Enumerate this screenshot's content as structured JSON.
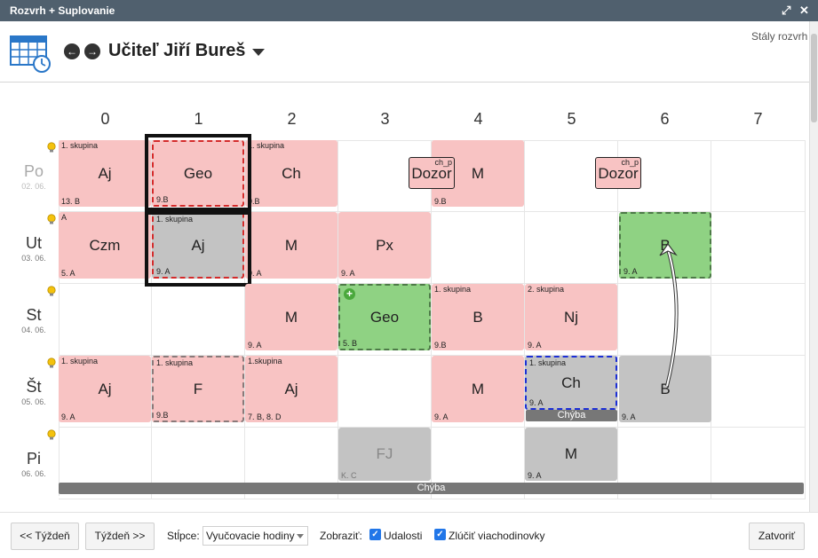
{
  "window": {
    "title": "Rozvrh + Suplovanie"
  },
  "header": {
    "title": "Učiteľ Jiří Bureš",
    "stale_link": "Stály rozvrh"
  },
  "columns": [
    "0",
    "1",
    "2",
    "3",
    "4",
    "5",
    "6",
    "7"
  ],
  "days": [
    {
      "name": "Po",
      "date": "02. 06."
    },
    {
      "name": "Ut",
      "date": "03. 06."
    },
    {
      "name": "St",
      "date": "04. 06."
    },
    {
      "name": "Št",
      "date": "05. 06."
    },
    {
      "name": "Pi",
      "date": "06. 06."
    }
  ],
  "lessons": {
    "po0": {
      "subj": "Aj",
      "grp": "1. skupina",
      "cls": "13. B"
    },
    "po1": {
      "subj": "Geo",
      "grp": "",
      "cls": "9.B"
    },
    "po2": {
      "subj": "Ch",
      "grp": "1. skupina",
      "cls": "9.B"
    },
    "po4": {
      "subj": "M",
      "grp": "",
      "cls": "9.B"
    },
    "ut0": {
      "subj": "Czm",
      "grp": "A",
      "cls": "5. A"
    },
    "ut1": {
      "subj": "Aj",
      "grp": "1. skupina",
      "cls": "9. A"
    },
    "ut2": {
      "subj": "M",
      "grp": "",
      "cls": "9. A"
    },
    "ut3": {
      "subj": "Px",
      "grp": "",
      "cls": "9. A"
    },
    "ut6": {
      "subj": "B",
      "grp": "",
      "cls": "9. A"
    },
    "st2": {
      "subj": "M",
      "grp": "",
      "cls": "9. A"
    },
    "st3": {
      "subj": "Geo",
      "grp": "",
      "cls": "5. B"
    },
    "st4": {
      "subj": "B",
      "grp": "1. skupina",
      "cls": "9.B"
    },
    "st5": {
      "subj": "Nj",
      "grp": "2. skupina",
      "cls": "9. A"
    },
    "st0": {
      "subj": "Aj",
      "grp": "1. skupina",
      "cls": "9. A"
    },
    "st1": {
      "subj": "F",
      "grp": "1. skupina",
      "cls": "9.B"
    },
    "st2b": {
      "subj": "Aj",
      "grp": "1.skupina",
      "cls": "7. B, 8. D"
    },
    "st4b": {
      "subj": "M",
      "grp": "",
      "cls": "9. A"
    },
    "st5b": {
      "subj": "Ch",
      "grp": "1. skupina",
      "cls": "9. A"
    },
    "st6b": {
      "subj": "B",
      "grp": "",
      "cls": "9. A"
    },
    "pi3": {
      "subj": "FJ",
      "grp": "",
      "cls": "K. C"
    },
    "pi5": {
      "subj": "M",
      "grp": "",
      "cls": "9. A"
    }
  },
  "dozor": {
    "label": "Dozor",
    "tag": "ch_p"
  },
  "absence": {
    "label": "Chýba"
  },
  "footer": {
    "prev_week": "<< Týždeň",
    "next_week": "Týždeň >>",
    "columns_label": "Stĺpce:",
    "columns_value": "Vyučovacie hodiny",
    "show_label": "Zobraziť:",
    "events_label": "Udalosti",
    "merge_label": "Zlúčiť viachodinovky",
    "close_label": "Zatvoriť"
  },
  "colors": {
    "lesson": "#f8c3c3",
    "moved": "#8fd283",
    "cancelled": "#c3c3c3",
    "titlebar": "#50606e",
    "checkbox": "#2176e8"
  }
}
